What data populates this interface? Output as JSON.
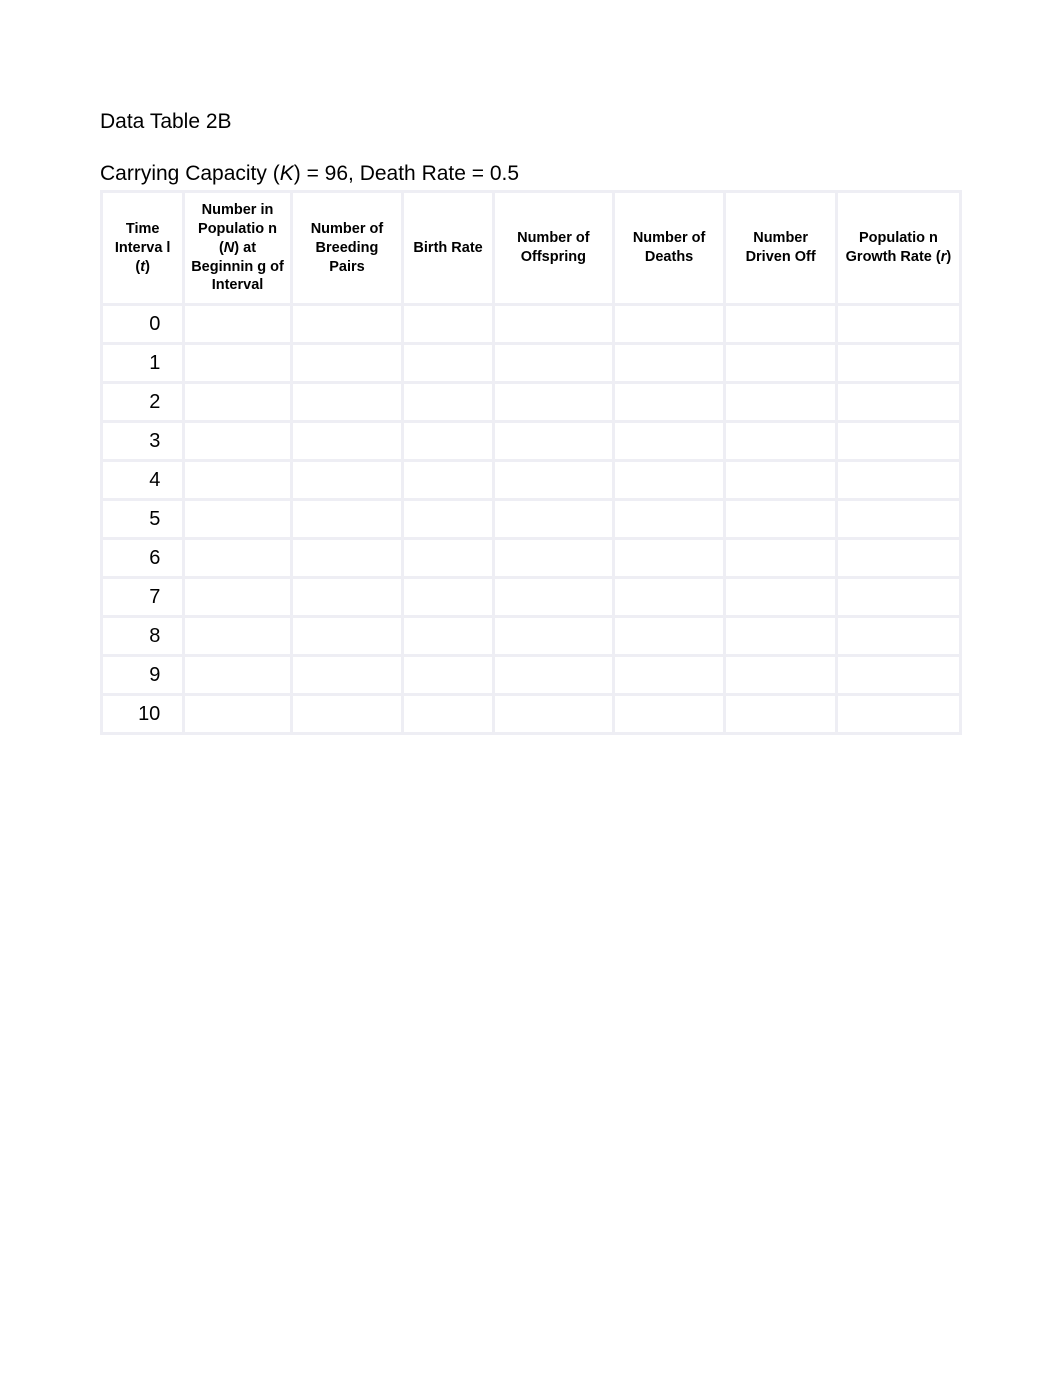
{
  "title": "Data Table 2B",
  "subtitle_prefix": "Carrying Capacity (",
  "subtitle_k": "K",
  "subtitle_suffix": ") = 96, Death Rate = 0.5",
  "table": {
    "columns": [
      {
        "parts": [
          {
            "text": "Time Interva l (",
            "italic": false
          },
          {
            "text": "t",
            "italic": true
          },
          {
            "text": ")",
            "italic": false
          }
        ]
      },
      {
        "parts": [
          {
            "text": "Number in Populatio n (",
            "italic": false
          },
          {
            "text": "N",
            "italic": true
          },
          {
            "text": ") at Beginnin g of Interval",
            "italic": false
          }
        ]
      },
      {
        "parts": [
          {
            "text": "Number of Breeding Pairs",
            "italic": false
          }
        ]
      },
      {
        "parts": [
          {
            "text": "Birth Rate",
            "italic": false
          }
        ]
      },
      {
        "parts": [
          {
            "text": "Number of Offspring",
            "italic": false
          }
        ]
      },
      {
        "parts": [
          {
            "text": "Number of Deaths",
            "italic": false
          }
        ]
      },
      {
        "parts": [
          {
            "text": "Number Driven Off",
            "italic": false
          }
        ]
      },
      {
        "parts": [
          {
            "text": "Populatio n Growth Rate (",
            "italic": false
          },
          {
            "text": "r",
            "italic": true
          },
          {
            "text": ")",
            "italic": false
          }
        ]
      }
    ],
    "rows": [
      [
        "0",
        "",
        "",
        "",
        "",
        "",
        "",
        ""
      ],
      [
        "1",
        "",
        "",
        "",
        "",
        "",
        "",
        ""
      ],
      [
        "2",
        "",
        "",
        "",
        "",
        "",
        "",
        ""
      ],
      [
        "3",
        "",
        "",
        "",
        "",
        "",
        "",
        ""
      ],
      [
        "4",
        "",
        "",
        "",
        "",
        "",
        "",
        ""
      ],
      [
        "5",
        "",
        "",
        "",
        "",
        "",
        "",
        ""
      ],
      [
        "6",
        "",
        "",
        "",
        "",
        "",
        "",
        ""
      ],
      [
        "7",
        "",
        "",
        "",
        "",
        "",
        "",
        ""
      ],
      [
        "8",
        "",
        "",
        "",
        "",
        "",
        "",
        ""
      ],
      [
        "9",
        "",
        "",
        "",
        "",
        "",
        "",
        ""
      ],
      [
        "10",
        "",
        "",
        "",
        "",
        "",
        "",
        ""
      ]
    ],
    "header_bg": "#ffffff",
    "cell_bg": "#ffffff",
    "grid_bg": "#eeeef4",
    "header_fontsize": 14.5,
    "cell_fontsize": 20,
    "text_color": "#000000"
  }
}
